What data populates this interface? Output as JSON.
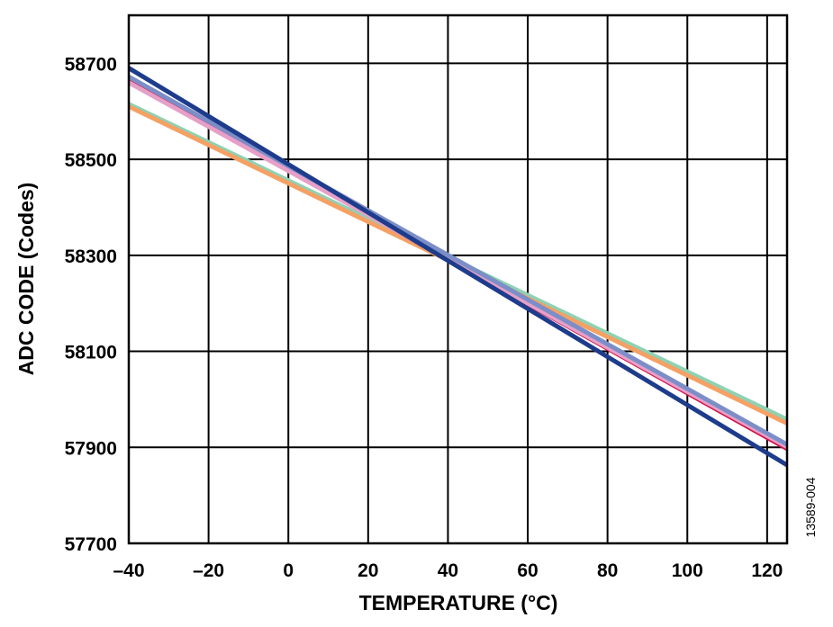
{
  "chart_data": {
    "type": "line",
    "title": "",
    "xlabel": "TEMPERATURE (°C)",
    "ylabel": "ADC CODE (Codes)",
    "xlim": [
      -40,
      125
    ],
    "ylim": [
      57700,
      58800
    ],
    "x_ticks": [
      -40,
      -20,
      0,
      20,
      40,
      60,
      80,
      100,
      120
    ],
    "x_tick_labels": [
      "–40",
      "–20",
      "0",
      "20",
      "40",
      "60",
      "80",
      "100",
      "120"
    ],
    "y_ticks": [
      57700,
      57900,
      58100,
      58300,
      58500,
      58700
    ],
    "y_tick_labels": [
      "57700",
      "57900",
      "58100",
      "58300",
      "58500",
      "58700"
    ],
    "grid": true,
    "legend": "none",
    "series": [
      {
        "name": "light-green",
        "color": "#8ED2B4",
        "x": [
          -40,
          125
        ],
        "y": [
          58615,
          57958
        ]
      },
      {
        "name": "orange",
        "color": "#F5A064",
        "x": [
          -40,
          125
        ],
        "y": [
          58610,
          57950
        ]
      },
      {
        "name": "crimson",
        "color": "#D2144B",
        "x": [
          -40,
          125
        ],
        "y": [
          58663,
          57897
        ]
      },
      {
        "name": "pink",
        "color": "#E6A0C8",
        "x": [
          -40,
          125
        ],
        "y": [
          58660,
          57901
        ]
      },
      {
        "name": "slate-blue",
        "color": "#7C8EC8",
        "x": [
          -40,
          125
        ],
        "y": [
          58672,
          57906
        ]
      },
      {
        "name": "dark-blue",
        "color": "#1E3C8C",
        "x": [
          -40,
          125
        ],
        "y": [
          58690,
          57863
        ]
      }
    ],
    "figure_id": "13589-004"
  }
}
